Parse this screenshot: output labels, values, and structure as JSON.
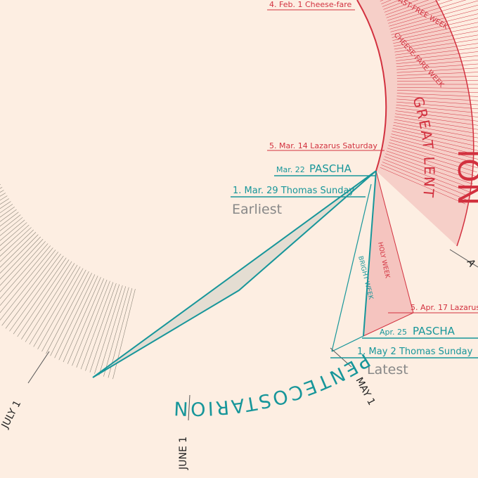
{
  "labels": {
    "cheese_fare": "4. Feb. 1 Cheese-fare",
    "fast_free_week": "AST-FREE WEEK",
    "cheese_fare_week": "CHEESE-FARE WEEK",
    "great_lent": "GREAT LENT",
    "triodion": "ION",
    "lazarus_early": "5. Mar. 14 Lazarus Saturday",
    "pascha_early_date": "Mar. 22",
    "pascha_early": "PASCHA",
    "thomas_early": "1. Mar. 29 Thomas Sunday",
    "earliest": "Earliest",
    "holy_week": "HOLY WEEK",
    "bright_week": "BRIGHT WEEK",
    "april_partial": "A",
    "lazarus_late": "5. Apr. 17 Lazarus",
    "pascha_late_date": "Apr. 25",
    "pascha_late": "PASCHA",
    "thomas_late": "1. May 2 Thomas Sunday",
    "latest": "Latest",
    "pentecostarion": "PENTECOSTARION",
    "may": "MAY 1",
    "june": "JUNE 1",
    "july": "JULY 1"
  }
}
